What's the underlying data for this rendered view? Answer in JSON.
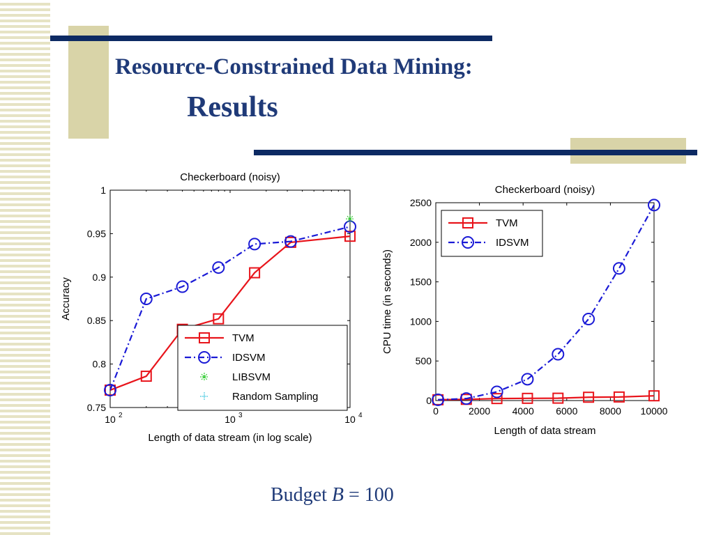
{
  "slide": {
    "title_line1": "Resource-Constrained Data Mining:",
    "title_line2": "Results",
    "caption_prefix": "Budget ",
    "caption_var": "B",
    "caption_suffix": " = 100",
    "accent_color": "#0d2a63",
    "beige_color": "#d9d4a8"
  },
  "chart_data": [
    {
      "type": "line",
      "title": "Checkerboard (noisy)",
      "xlabel": "Length of data stream (in log scale)",
      "ylabel": "Accuracy",
      "xscale": "log",
      "xlim": [
        100,
        10000
      ],
      "ylim": [
        0.75,
        1
      ],
      "xticks": [
        {
          "value": 100,
          "base": "10",
          "exp": "2"
        },
        {
          "value": 1000,
          "base": "10",
          "exp": "3"
        },
        {
          "value": 10000,
          "base": "10",
          "exp": "4"
        }
      ],
      "yticks": [
        {
          "value": 0.75,
          "label": "0.75"
        },
        {
          "value": 0.8,
          "label": "0.8"
        },
        {
          "value": 0.85,
          "label": "0.85"
        },
        {
          "value": 0.9,
          "label": "0.9"
        },
        {
          "value": 0.95,
          "label": "0.95"
        },
        {
          "value": 1,
          "label": "1"
        }
      ],
      "legend_position": "bottom-right",
      "grid": false,
      "series": [
        {
          "name": "TVM",
          "color": "#e8141b",
          "marker": "square",
          "dash": "solid",
          "x": [
            100,
            200,
            400,
            800,
            1600,
            3200,
            10000
          ],
          "y": [
            0.77,
            0.786,
            0.84,
            0.852,
            0.905,
            0.94,
            0.947
          ]
        },
        {
          "name": "IDSVM",
          "color": "#1a1ad6",
          "marker": "circle",
          "dash": "dashdot",
          "x": [
            100,
            200,
            400,
            800,
            1600,
            3200,
            10000
          ],
          "y": [
            0.77,
            0.875,
            0.889,
            0.911,
            0.938,
            0.941,
            0.958
          ]
        },
        {
          "name": "LIBSVM",
          "color": "#33cc33",
          "marker": "star",
          "dash": "none",
          "x": [
            10000
          ],
          "y": [
            0.967
          ]
        },
        {
          "name": "Random Sampling",
          "color": "#44c8e0",
          "marker": "plus",
          "dash": "none",
          "x": [],
          "y": []
        }
      ]
    },
    {
      "type": "line",
      "title": "Checkerboard (noisy)",
      "xlabel": "Length of data stream",
      "ylabel": "CPU time (in seconds)",
      "xlim": [
        0,
        10000
      ],
      "ylim": [
        0,
        2500
      ],
      "xticks": [
        {
          "value": 0,
          "label": "0"
        },
        {
          "value": 2000,
          "label": "2000"
        },
        {
          "value": 4000,
          "label": "4000"
        },
        {
          "value": 6000,
          "label": "6000"
        },
        {
          "value": 8000,
          "label": "8000"
        },
        {
          "value": 10000,
          "label": "10000"
        }
      ],
      "yticks": [
        {
          "value": 0,
          "label": "0"
        },
        {
          "value": 500,
          "label": "500"
        },
        {
          "value": 1000,
          "label": "1000"
        },
        {
          "value": 1500,
          "label": "1500"
        },
        {
          "value": 2000,
          "label": "2000"
        },
        {
          "value": 2500,
          "label": "2500"
        }
      ],
      "legend_position": "top-left",
      "grid": false,
      "series": [
        {
          "name": "TVM",
          "color": "#e8141b",
          "marker": "square",
          "dash": "solid",
          "x": [
            100,
            1400,
            2800,
            4200,
            5600,
            7000,
            8400,
            10000
          ],
          "y": [
            10,
            15,
            25,
            28,
            30,
            42,
            45,
            60
          ]
        },
        {
          "name": "IDSVM",
          "color": "#1a1ad6",
          "marker": "circle",
          "dash": "dashdot",
          "x": [
            100,
            1400,
            2800,
            4200,
            5600,
            7000,
            8400,
            10000
          ],
          "y": [
            10,
            25,
            110,
            270,
            585,
            1030,
            1670,
            2470
          ]
        }
      ]
    }
  ]
}
